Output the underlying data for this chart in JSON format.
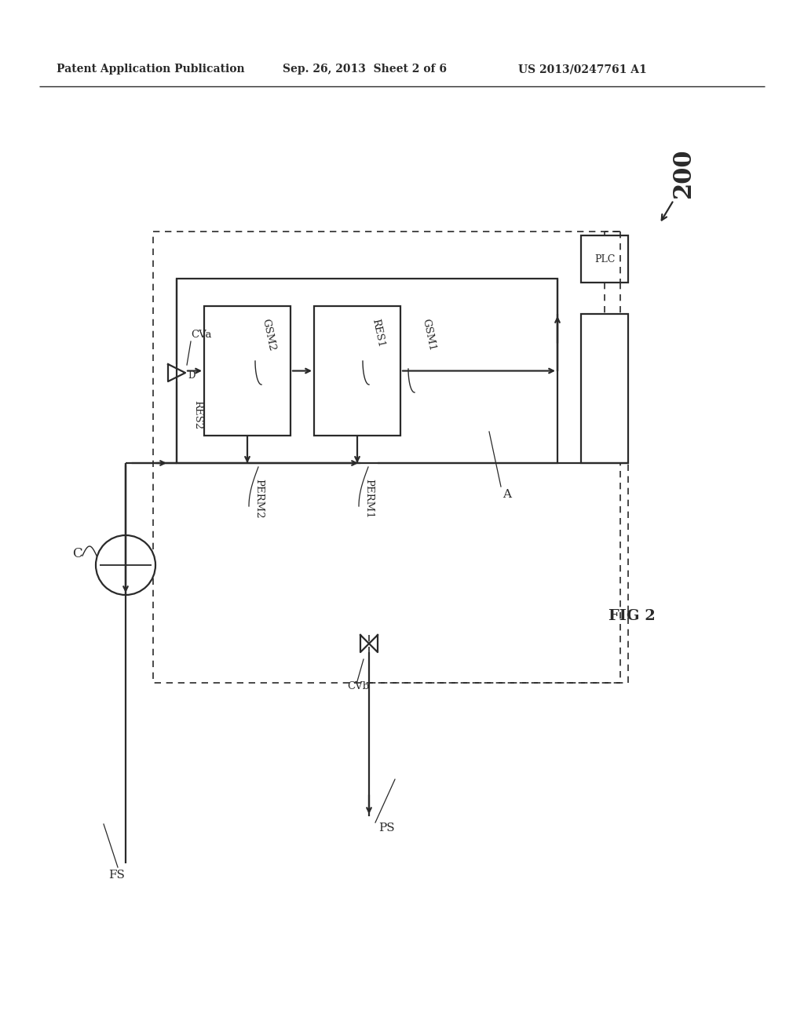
{
  "bg_color": "#ffffff",
  "header_text": "Patent Application Publication",
  "header_date": "Sep. 26, 2013  Sheet 2 of 6",
  "header_patent": "US 2013/0247761 A1",
  "fig_label": "FIG 2",
  "ref_200": "200",
  "label_PLC": "PLC",
  "label_A": "A",
  "label_C": "C",
  "label_CVa": "CVa",
  "label_CVb": "CVb",
  "label_D": "D",
  "label_GSM1": "GSM1",
  "label_GSM2": "GSM2",
  "label_RES1": "RES1",
  "label_RES2": "RES2",
  "label_PERM1": "PERM1",
  "label_PERM2": "PERM2",
  "label_FS": "FS",
  "label_PS": "PS",
  "color": "#2a2a2a",
  "lw_main": 1.6,
  "lw_dashed": 1.2
}
